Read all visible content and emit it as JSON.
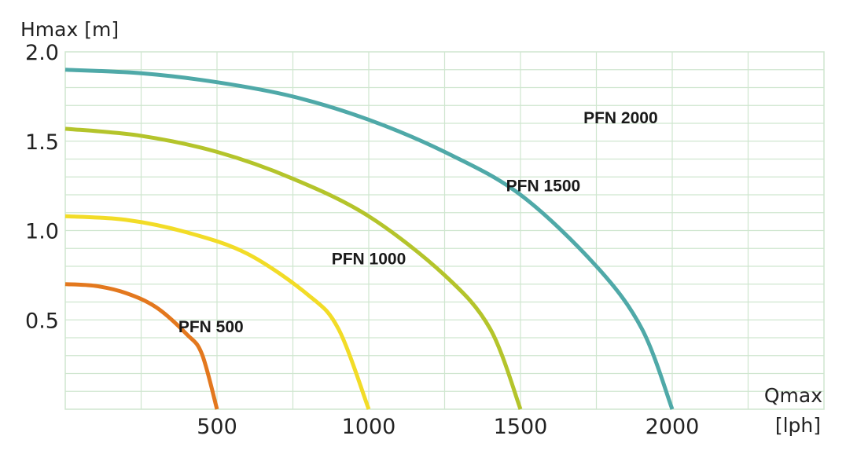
{
  "chart_data": {
    "type": "line",
    "ylabel": "Hmax [m]",
    "xlabel_top": "Qmax",
    "xlabel_bottom": "[lph]",
    "xlim": [
      0,
      2500
    ],
    "ylim": [
      0,
      2.0
    ],
    "x_ticks": [
      "500",
      "1000",
      "1500",
      "2000"
    ],
    "x_tick_values": [
      500,
      1000,
      1500,
      2000
    ],
    "y_ticks": [
      "0.5",
      "1.0",
      "1.5",
      "2.0"
    ],
    "y_tick_values": [
      0.5,
      1.0,
      1.5,
      2.0
    ],
    "grid": true,
    "grid_color": "#cfe6cf",
    "series": [
      {
        "name": "PFN 500",
        "color": "#e3781e",
        "label_at": [
          480,
          0.43
        ],
        "x": [
          0,
          100,
          200,
          300,
          400,
          450,
          500
        ],
        "y": [
          0.7,
          0.69,
          0.65,
          0.57,
          0.42,
          0.31,
          0.0
        ]
      },
      {
        "name": "PFN 1000",
        "color": "#f2dc27",
        "label_at": [
          1000,
          0.81
        ],
        "x": [
          0,
          200,
          400,
          600,
          800,
          900,
          1000
        ],
        "y": [
          1.08,
          1.06,
          0.99,
          0.87,
          0.64,
          0.45,
          0.0
        ]
      },
      {
        "name": "PFN 1500",
        "color": "#b4c42b",
        "label_at": [
          1575,
          1.22
        ],
        "x": [
          0,
          250,
          500,
          750,
          1000,
          1250,
          1400,
          1500
        ],
        "y": [
          1.57,
          1.53,
          1.44,
          1.29,
          1.08,
          0.75,
          0.45,
          0.0
        ]
      },
      {
        "name": "PFN 2000",
        "color": "#4fa9a8",
        "label_at": [
          1830,
          1.6
        ],
        "x": [
          0,
          250,
          500,
          750,
          1000,
          1250,
          1500,
          1750,
          1900,
          2000
        ],
        "y": [
          1.9,
          1.88,
          1.83,
          1.75,
          1.62,
          1.44,
          1.2,
          0.8,
          0.45,
          0.0
        ]
      }
    ]
  }
}
